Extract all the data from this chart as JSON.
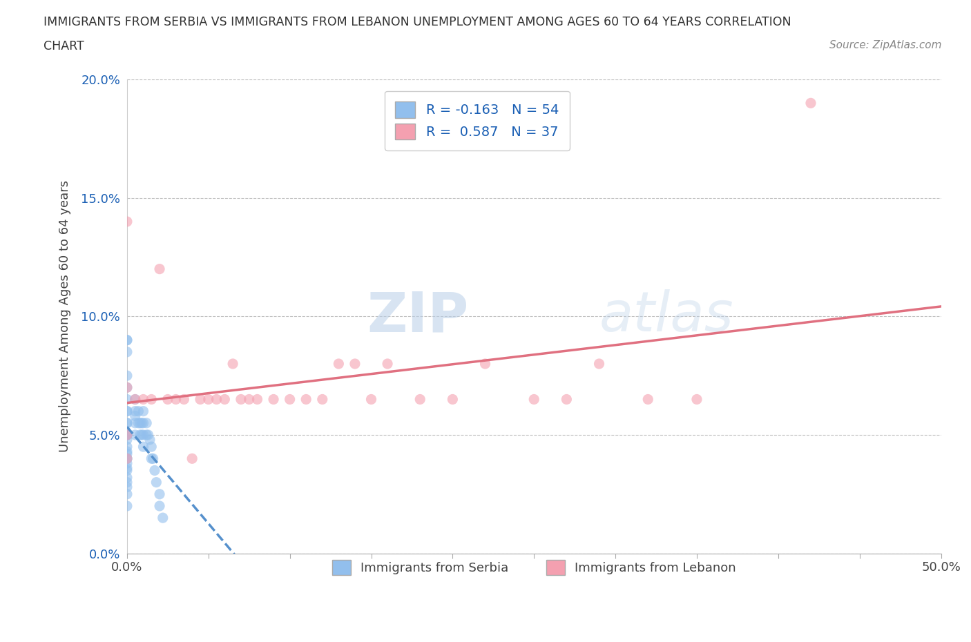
{
  "title_line1": "IMMIGRANTS FROM SERBIA VS IMMIGRANTS FROM LEBANON UNEMPLOYMENT AMONG AGES 60 TO 64 YEARS CORRELATION",
  "title_line2": "CHART",
  "source": "Source: ZipAtlas.com",
  "ylabel": "Unemployment Among Ages 60 to 64 years",
  "xlim": [
    0,
    0.5
  ],
  "ylim": [
    0,
    0.2
  ],
  "xticks": [
    0.0,
    0.05,
    0.1,
    0.15,
    0.2,
    0.25,
    0.3,
    0.35,
    0.4,
    0.45,
    0.5
  ],
  "yticks": [
    0.0,
    0.05,
    0.1,
    0.15,
    0.2
  ],
  "xtick_labels": [
    "0.0%",
    "",
    "",
    "",
    "",
    "",
    "",
    "",
    "",
    "",
    "50.0%"
  ],
  "ytick_labels": [
    "0.0%",
    "5.0%",
    "10.0%",
    "15.0%",
    "20.0%"
  ],
  "serbia_color": "#92BFED",
  "lebanon_color": "#F4A0B0",
  "serbia_line_color": "#5590CC",
  "lebanon_line_color": "#E07080",
  "serbia_R": -0.163,
  "serbia_N": 54,
  "lebanon_R": 0.587,
  "lebanon_N": 37,
  "serbia_label": "Immigrants from Serbia",
  "lebanon_label": "Immigrants from Lebanon",
  "watermark_zip": "ZIP",
  "watermark_atlas": "atlas",
  "serbia_x": [
    0.0,
    0.0,
    0.0,
    0.0,
    0.0,
    0.0,
    0.0,
    0.0,
    0.0,
    0.0,
    0.0,
    0.0,
    0.0,
    0.0,
    0.0,
    0.0,
    0.0,
    0.0,
    0.0,
    0.0,
    0.0,
    0.0,
    0.0,
    0.0,
    0.0,
    0.0,
    0.0,
    0.005,
    0.005,
    0.005,
    0.005,
    0.005,
    0.007,
    0.007,
    0.008,
    0.008,
    0.009,
    0.009,
    0.01,
    0.01,
    0.01,
    0.01,
    0.012,
    0.012,
    0.013,
    0.014,
    0.015,
    0.015,
    0.016,
    0.017,
    0.018,
    0.02,
    0.02,
    0.022
  ],
  "serbia_y": [
    0.09,
    0.09,
    0.085,
    0.075,
    0.07,
    0.065,
    0.06,
    0.06,
    0.055,
    0.055,
    0.05,
    0.05,
    0.05,
    0.048,
    0.045,
    0.043,
    0.042,
    0.04,
    0.04,
    0.038,
    0.036,
    0.035,
    0.032,
    0.03,
    0.028,
    0.025,
    0.02,
    0.065,
    0.06,
    0.058,
    0.055,
    0.05,
    0.06,
    0.055,
    0.055,
    0.05,
    0.055,
    0.05,
    0.06,
    0.055,
    0.05,
    0.045,
    0.055,
    0.05,
    0.05,
    0.048,
    0.045,
    0.04,
    0.04,
    0.035,
    0.03,
    0.025,
    0.02,
    0.015
  ],
  "lebanon_x": [
    0.0,
    0.0,
    0.0,
    0.0,
    0.005,
    0.01,
    0.015,
    0.02,
    0.025,
    0.03,
    0.035,
    0.04,
    0.045,
    0.05,
    0.055,
    0.06,
    0.065,
    0.07,
    0.075,
    0.08,
    0.09,
    0.1,
    0.11,
    0.12,
    0.13,
    0.14,
    0.15,
    0.16,
    0.18,
    0.2,
    0.22,
    0.25,
    0.27,
    0.29,
    0.32,
    0.35,
    0.42
  ],
  "lebanon_y": [
    0.14,
    0.07,
    0.05,
    0.04,
    0.065,
    0.065,
    0.065,
    0.12,
    0.065,
    0.065,
    0.065,
    0.04,
    0.065,
    0.065,
    0.065,
    0.065,
    0.08,
    0.065,
    0.065,
    0.065,
    0.065,
    0.065,
    0.065,
    0.065,
    0.08,
    0.08,
    0.065,
    0.08,
    0.065,
    0.065,
    0.08,
    0.065,
    0.065,
    0.08,
    0.065,
    0.065,
    0.19
  ]
}
